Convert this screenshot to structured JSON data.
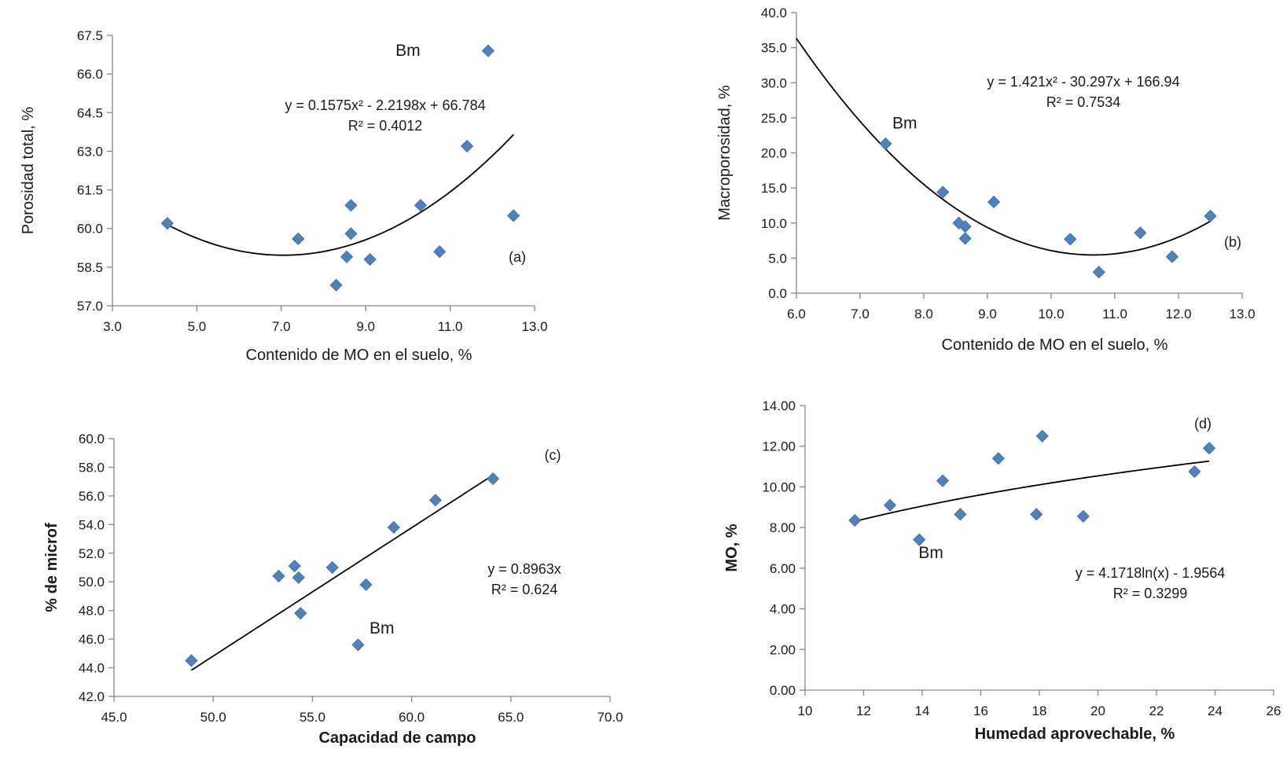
{
  "colors": {
    "marker": "#4f81bd",
    "trendline": "#000000",
    "axis": "#868686"
  },
  "chart_data": [
    {
      "id": "a",
      "type": "scatter",
      "xlabel": "Contenido de MO en el suelo, %",
      "ylabel": "Porosidad total, %",
      "xlim": [
        3.0,
        13.0
      ],
      "ylim": [
        57.0,
        67.5
      ],
      "xticks": [
        "3.0",
        "5.0",
        "7.0",
        "9.0",
        "11.0",
        "13.0"
      ],
      "yticks": [
        "57.0",
        "58.5",
        "60.0",
        "61.5",
        "63.0",
        "64.5",
        "66.0",
        "67.5"
      ],
      "points": [
        {
          "x": 4.3,
          "y": 60.2
        },
        {
          "x": 7.4,
          "y": 59.6
        },
        {
          "x": 8.3,
          "y": 57.8
        },
        {
          "x": 8.55,
          "y": 58.9
        },
        {
          "x": 8.65,
          "y": 60.9
        },
        {
          "x": 8.65,
          "y": 59.8
        },
        {
          "x": 9.1,
          "y": 58.8
        },
        {
          "x": 10.3,
          "y": 60.9
        },
        {
          "x": 10.75,
          "y": 59.1
        },
        {
          "x": 11.4,
          "y": 63.2
        },
        {
          "x": 11.9,
          "y": 66.9
        },
        {
          "x": 12.5,
          "y": 60.5
        }
      ],
      "trendline": {
        "kind": "poly2",
        "coef": [
          0.1575,
          -2.2198,
          66.784
        ],
        "xrange": [
          4.3,
          12.5
        ]
      },
      "equation": "y = 0.1575x² - 2.2198x + 66.784",
      "r2": "R² = 0.4012",
      "tag": "(a)",
      "annotations": [
        {
          "text": "Bm",
          "x": 10.0,
          "y": 66.7
        }
      ]
    },
    {
      "id": "b",
      "type": "scatter",
      "xlabel": "Contenido de MO en el suelo, %",
      "ylabel": "Macroporosidad, %",
      "xlim": [
        6.0,
        13.0
      ],
      "ylim": [
        0.0,
        40.0
      ],
      "xticks": [
        "6.0",
        "7.0",
        "8.0",
        "9.0",
        "10.0",
        "11.0",
        "12.0",
        "13.0"
      ],
      "yticks": [
        "0.0",
        "5.0",
        "10.0",
        "15.0",
        "20.0",
        "25.0",
        "30.0",
        "35.0",
        "40.0"
      ],
      "points": [
        {
          "x": 7.4,
          "y": 21.3
        },
        {
          "x": 8.3,
          "y": 14.4
        },
        {
          "x": 8.55,
          "y": 10.0
        },
        {
          "x": 8.65,
          "y": 9.5
        },
        {
          "x": 8.65,
          "y": 7.8
        },
        {
          "x": 9.1,
          "y": 13.0
        },
        {
          "x": 10.3,
          "y": 7.7
        },
        {
          "x": 10.75,
          "y": 3.0
        },
        {
          "x": 11.4,
          "y": 8.6
        },
        {
          "x": 11.9,
          "y": 5.2
        },
        {
          "x": 12.5,
          "y": 11.0
        }
      ],
      "trendline": {
        "kind": "poly2",
        "coef": [
          1.421,
          -30.297,
          166.94
        ],
        "xrange": [
          6.0,
          12.5
        ]
      },
      "equation": "y = 1.421x² - 30.297x + 166.94",
      "r2": "R² = 0.7534",
      "tag": "(b)",
      "annotations": [
        {
          "text": "Bm",
          "x": 7.7,
          "y": 23.5
        }
      ]
    },
    {
      "id": "c",
      "type": "scatter",
      "xlabel": "Capacidad de campo",
      "ylabel": "% de microf",
      "xlim": [
        45.0,
        70.0
      ],
      "ylim": [
        42.0,
        60.0
      ],
      "xticks": [
        "45.0",
        "50.0",
        "55.0",
        "60.0",
        "65.0",
        "70.0"
      ],
      "yticks": [
        "42.0",
        "44.0",
        "46.0",
        "48.0",
        "50.0",
        "52.0",
        "54.0",
        "56.0",
        "58.0",
        "60.0"
      ],
      "points": [
        {
          "x": 48.9,
          "y": 44.5
        },
        {
          "x": 53.3,
          "y": 50.4
        },
        {
          "x": 54.1,
          "y": 51.1
        },
        {
          "x": 54.3,
          "y": 50.3
        },
        {
          "x": 54.4,
          "y": 47.8
        },
        {
          "x": 56.0,
          "y": 51.0
        },
        {
          "x": 57.3,
          "y": 45.6
        },
        {
          "x": 57.7,
          "y": 49.8
        },
        {
          "x": 59.1,
          "y": 53.8
        },
        {
          "x": 61.2,
          "y": 55.7
        },
        {
          "x": 64.1,
          "y": 57.2
        }
      ],
      "trendline": {
        "kind": "linear",
        "coef": [
          0.8963,
          0
        ],
        "xrange": [
          48.9,
          64.1
        ]
      },
      "equation": "y = 0.8963x",
      "r2": "R² = 0.624",
      "tag": "(c)",
      "annotations": [
        {
          "text": "Bm",
          "x": 58.5,
          "y": 46.4
        }
      ]
    },
    {
      "id": "d",
      "type": "scatter",
      "xlabel": "Humedad aprovechable, %",
      "ylabel": "MO, %",
      "xlim": [
        10,
        26
      ],
      "ylim": [
        0.0,
        14.0
      ],
      "xticks": [
        "10",
        "12",
        "14",
        "16",
        "18",
        "20",
        "22",
        "24",
        "26"
      ],
      "yticks": [
        "0.00",
        "2.00",
        "4.00",
        "6.00",
        "8.00",
        "10.00",
        "12.00",
        "14.00"
      ],
      "points": [
        {
          "x": 11.7,
          "y": 8.35
        },
        {
          "x": 12.9,
          "y": 9.1
        },
        {
          "x": 13.9,
          "y": 7.4
        },
        {
          "x": 14.7,
          "y": 10.3
        },
        {
          "x": 15.3,
          "y": 8.65
        },
        {
          "x": 16.6,
          "y": 11.4
        },
        {
          "x": 17.9,
          "y": 8.65
        },
        {
          "x": 18.1,
          "y": 12.5
        },
        {
          "x": 19.5,
          "y": 8.55
        },
        {
          "x": 23.3,
          "y": 10.75
        },
        {
          "x": 23.8,
          "y": 11.9
        }
      ],
      "trendline": {
        "kind": "log",
        "coef": [
          4.1718,
          -1.9564
        ],
        "xrange": [
          11.7,
          23.8
        ]
      },
      "equation": "y = 4.1718ln(x) - 1.9564",
      "r2": "R² = 0.3299",
      "tag": "(d)",
      "annotations": [
        {
          "text": "Bm",
          "x": 14.3,
          "y": 6.5
        }
      ]
    }
  ]
}
